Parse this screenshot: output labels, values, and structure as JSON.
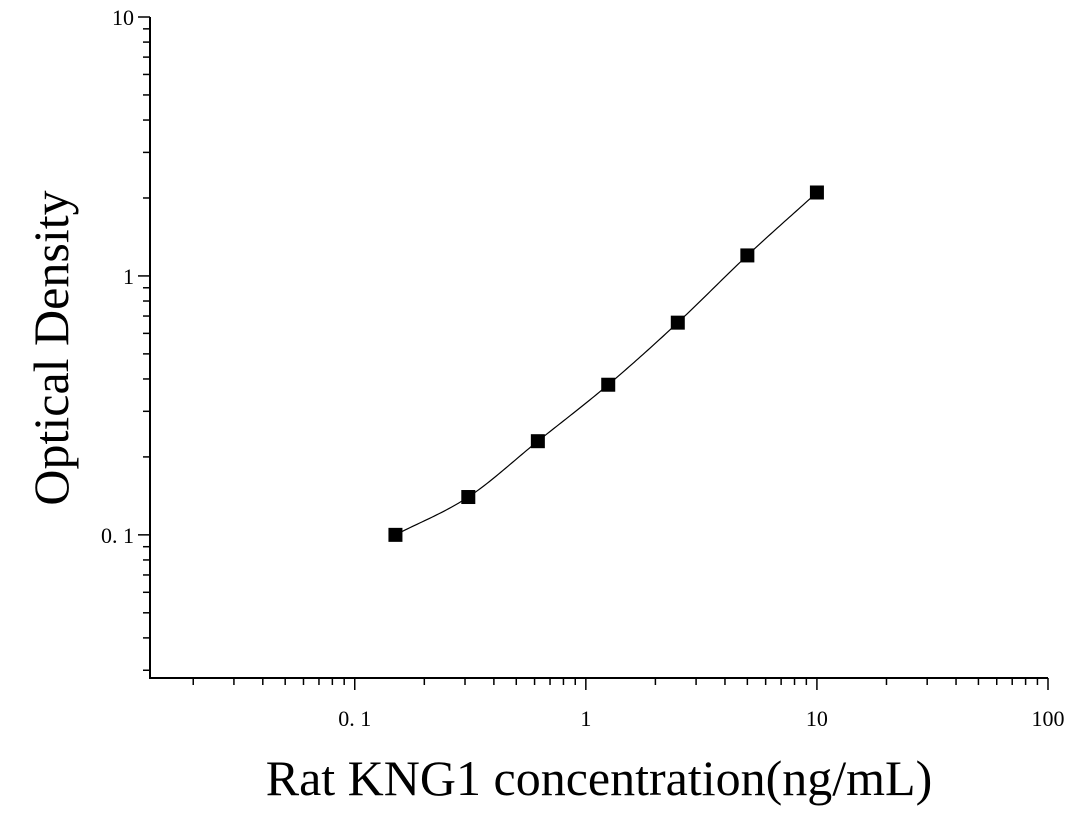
{
  "chart_data": {
    "type": "scatter",
    "title": "",
    "xlabel": "Rat KNG1 concentration(ng/mL)",
    "ylabel": "Optical Density",
    "x_scale": "log",
    "y_scale": "log",
    "xlim": [
      0.013,
      100
    ],
    "ylim": [
      0.028,
      10
    ],
    "x_tick_values": [
      0.1,
      1,
      10,
      100
    ],
    "x_tick_labels": [
      "0. 1",
      "1",
      "10",
      "100"
    ],
    "y_tick_values": [
      0.1,
      1,
      10
    ],
    "y_tick_labels": [
      "0. 1",
      "1",
      "10"
    ],
    "grid": false,
    "legend": "none",
    "series": [
      {
        "marker": "square",
        "color": "#000000",
        "x": [
          0.15,
          0.31,
          0.62,
          1.25,
          2.5,
          5,
          10
        ],
        "y": [
          0.1,
          0.14,
          0.23,
          0.38,
          0.66,
          1.2,
          2.1
        ]
      }
    ],
    "fit_curve": {
      "style": "thin-line",
      "color": "#000000",
      "x_range": [
        0.15,
        10
      ]
    }
  }
}
